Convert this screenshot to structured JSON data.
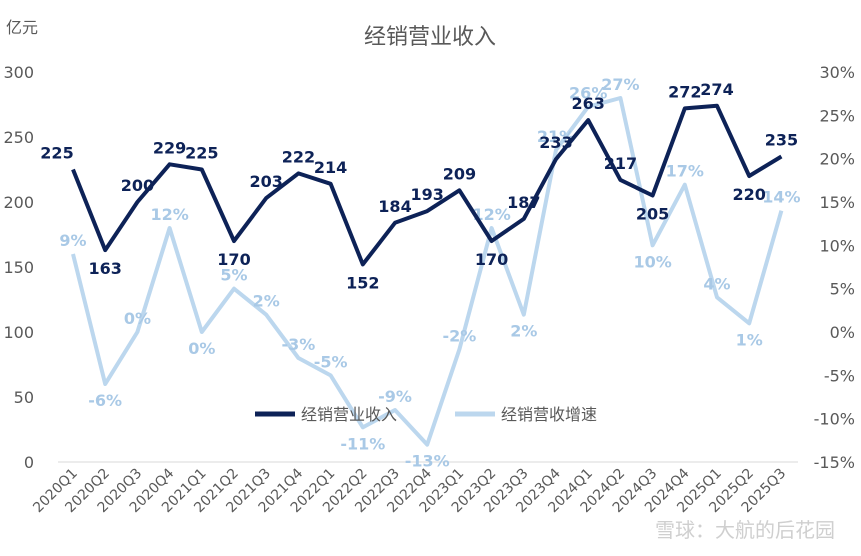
{
  "chart_data": {
    "type": "line",
    "title": "经销营业收入",
    "y_left_unit": "亿元",
    "categories": [
      "2020Q1",
      "2020Q2",
      "2020Q3",
      "2020Q4",
      "2021Q1",
      "2021Q2",
      "2021Q3",
      "2021Q4",
      "2022Q1",
      "2022Q2",
      "2022Q3",
      "2022Q4",
      "2023Q1",
      "2023Q2",
      "2023Q3",
      "2023Q4",
      "2024Q1",
      "2024Q2",
      "2024Q3",
      "2024Q4",
      "2025Q1",
      "2025Q2",
      "2025Q3"
    ],
    "series": [
      {
        "name": "经销营业收入",
        "axis": "left",
        "color": "#0d2257",
        "values": [
          225,
          163,
          200,
          229,
          225,
          170,
          203,
          222,
          214,
          152,
          184,
          193,
          209,
          170,
          187,
          233,
          263,
          217,
          205,
          272,
          274,
          220,
          235
        ],
        "labels": [
          "225",
          "163",
          "200",
          "229",
          "225",
          "170",
          "203",
          "222",
          "214",
          "152",
          "184",
          "193",
          "209",
          "170",
          "187",
          "233",
          "263",
          "217",
          "205",
          "272",
          "274",
          "220",
          "235"
        ]
      },
      {
        "name": "经销营收增速",
        "axis": "right",
        "color": "#bcd7ee",
        "values": [
          9,
          -6,
          0,
          12,
          0,
          5,
          2,
          -3,
          -5,
          -11,
          -9,
          -13,
          -2,
          12,
          2,
          21,
          26,
          27,
          10,
          17,
          4,
          1,
          14
        ],
        "labels": [
          "9%",
          "-6%",
          "0%",
          "12%",
          "0%",
          "5%",
          "2%",
          "-3%",
          "-5%",
          "-11%",
          "-9%",
          "-13%",
          "-2%",
          "12%",
          "2%",
          "21%",
          "26%",
          "27%",
          "10%",
          "17%",
          "4%",
          "1%",
          "14%"
        ]
      }
    ],
    "y_left": {
      "min": 0,
      "max": 300,
      "step": 50,
      "ticks": [
        "0",
        "50",
        "100",
        "150",
        "200",
        "250",
        "300"
      ]
    },
    "y_right": {
      "min": -15,
      "max": 30,
      "step": 5,
      "ticks": [
        "-15%",
        "-10%",
        "-5%",
        "0%",
        "5%",
        "10%",
        "15%",
        "20%",
        "25%",
        "30%"
      ]
    },
    "legend": {
      "placement": "center",
      "items": [
        "经销营业收入",
        "经销营收增速"
      ]
    },
    "grid": false
  },
  "watermark": "雪球：大航的后花园"
}
